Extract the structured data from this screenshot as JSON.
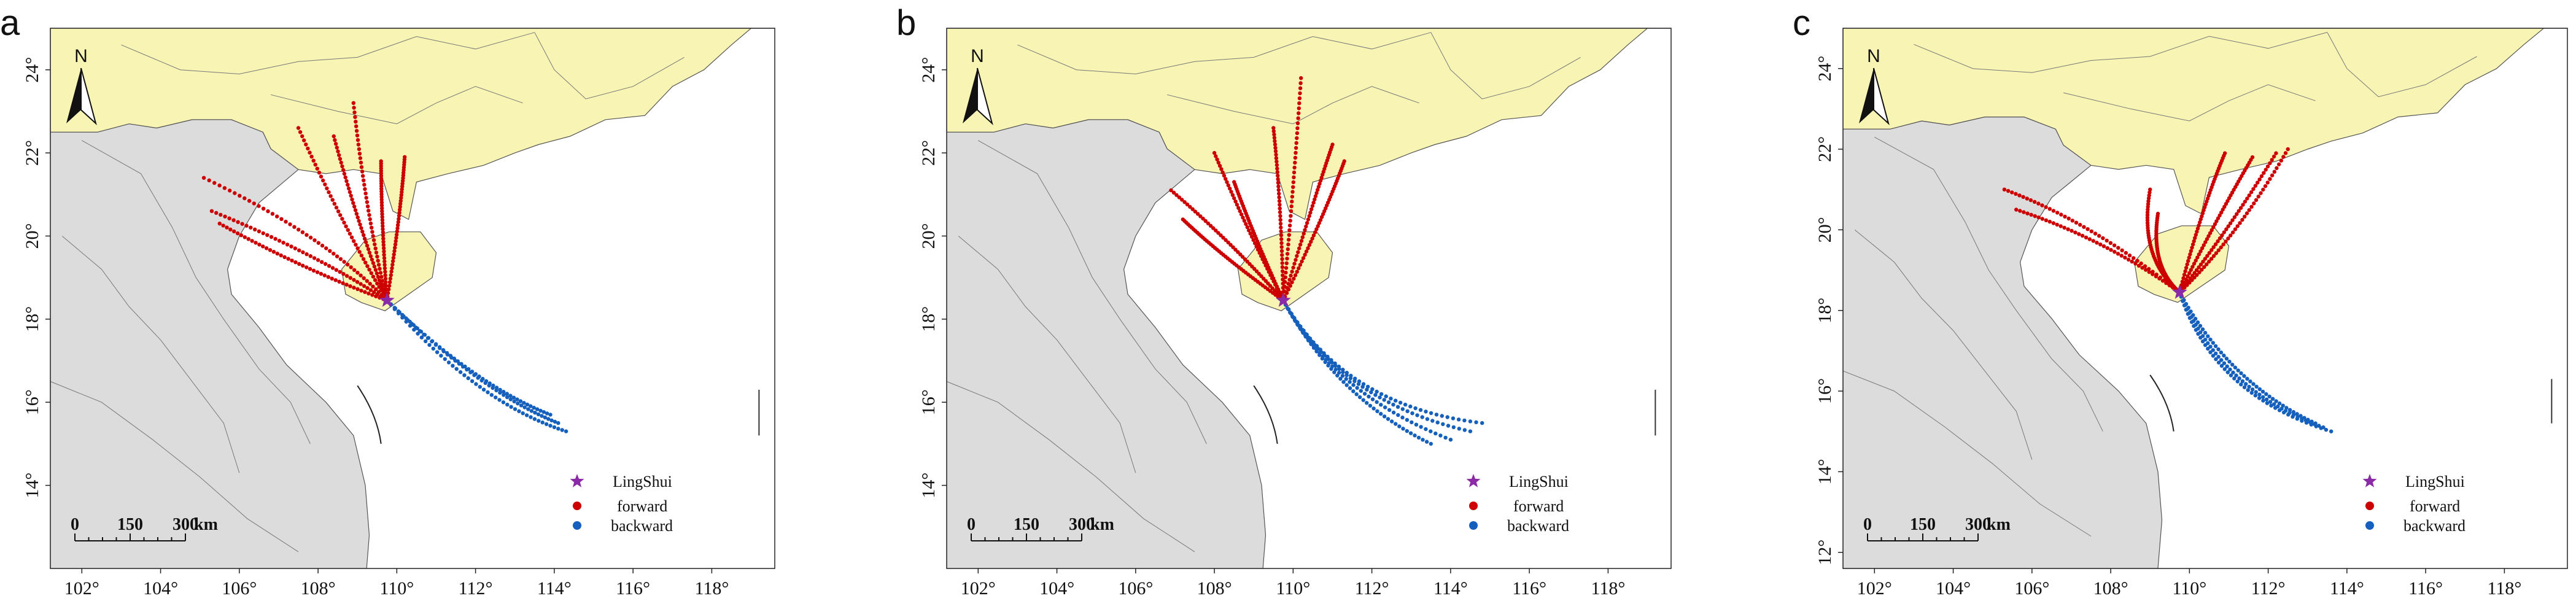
{
  "colors": {
    "china_land": "#f8f4b4",
    "other_land": "#dcdcdc",
    "sea": "#ffffff",
    "forward": "#cc0000",
    "backward": "#1560bd",
    "site": "#8b2aa6",
    "border": "#555555"
  },
  "legend": {
    "site_label": "LingShui",
    "forward_label": "forward",
    "backward_label": "backward"
  },
  "north_arrow": {
    "label": "N"
  },
  "scale_bar": {
    "labels": [
      "0",
      "150",
      "300"
    ],
    "unit": "km"
  },
  "site": {
    "lon": 109.75,
    "lat": 18.45
  },
  "panels": [
    {
      "letter": "a",
      "lon_range": [
        101.2,
        119.6
      ],
      "lat_range": [
        12.0,
        25.0
      ],
      "lon_ticks": [
        "102°",
        "104°",
        "106°",
        "108°",
        "110°",
        "112°",
        "114°",
        "116°",
        "118°"
      ],
      "lat_ticks": [
        "14°",
        "16°",
        "18°",
        "20°",
        "22°",
        "24°"
      ],
      "forward": [
        {
          "ctrl": [
            108.2,
            20.0
          ],
          "end": [
            105.1,
            21.4
          ]
        },
        {
          "ctrl": [
            107.9,
            19.6
          ],
          "end": [
            105.3,
            20.6
          ]
        },
        {
          "ctrl": [
            107.6,
            19.2
          ],
          "end": [
            105.5,
            20.3
          ]
        },
        {
          "ctrl": [
            108.6,
            20.3
          ],
          "end": [
            107.5,
            22.6
          ]
        },
        {
          "ctrl": [
            109.0,
            20.3
          ],
          "end": [
            108.4,
            22.4
          ]
        },
        {
          "ctrl": [
            109.2,
            20.6
          ],
          "end": [
            108.9,
            23.2
          ]
        },
        {
          "ctrl": [
            109.6,
            20.5
          ],
          "end": [
            109.6,
            21.8
          ]
        },
        {
          "ctrl": [
            110.1,
            20.5
          ],
          "end": [
            110.2,
            21.9
          ]
        }
      ],
      "backward": [
        {
          "ctrl": [
            112.0,
            16.0
          ],
          "end": [
            114.3,
            15.3
          ]
        },
        {
          "ctrl": [
            112.2,
            16.2
          ],
          "end": [
            114.1,
            15.5
          ]
        },
        {
          "ctrl": [
            112.0,
            16.4
          ],
          "end": [
            113.9,
            15.7
          ]
        }
      ]
    },
    {
      "letter": "b",
      "lon_range": [
        101.2,
        119.6
      ],
      "lat_range": [
        12.0,
        25.0
      ],
      "lon_ticks": [
        "102°",
        "104°",
        "106°",
        "108°",
        "110°",
        "112°",
        "114°",
        "116°",
        "118°"
      ],
      "lat_ticks": [
        "14°",
        "16°",
        "18°",
        "20°",
        "22°",
        "24°"
      ],
      "forward": [
        {
          "ctrl": [
            108.5,
            19.8
          ],
          "end": [
            106.9,
            21.1
          ]
        },
        {
          "ctrl": [
            108.2,
            19.5
          ],
          "end": [
            107.2,
            20.4
          ]
        },
        {
          "ctrl": [
            108.8,
            20.2
          ],
          "end": [
            108.0,
            22.0
          ]
        },
        {
          "ctrl": [
            109.0,
            20.0
          ],
          "end": [
            108.5,
            21.3
          ]
        },
        {
          "ctrl": [
            109.7,
            20.8
          ],
          "end": [
            109.5,
            22.6
          ]
        },
        {
          "ctrl": [
            110.0,
            21.0
          ],
          "end": [
            110.2,
            23.8
          ]
        },
        {
          "ctrl": [
            110.5,
            20.8
          ],
          "end": [
            111.0,
            22.2
          ]
        },
        {
          "ctrl": [
            110.8,
            20.5
          ],
          "end": [
            111.3,
            21.8
          ]
        }
      ],
      "backward": [
        {
          "ctrl": [
            111.3,
            15.9
          ],
          "end": [
            114.8,
            15.5
          ]
        },
        {
          "ctrl": [
            111.2,
            16.0
          ],
          "end": [
            114.5,
            15.3
          ]
        },
        {
          "ctrl": [
            111.0,
            16.2
          ],
          "end": [
            114.0,
            15.1
          ]
        },
        {
          "ctrl": [
            111.1,
            16.1
          ],
          "end": [
            113.5,
            15.0
          ]
        }
      ]
    },
    {
      "letter": "c",
      "lon_range": [
        101.2,
        119.6
      ],
      "lat_range": [
        11.6,
        25.0
      ],
      "lon_ticks": [
        "102°",
        "104°",
        "106°",
        "108°",
        "110°",
        "112°",
        "114°",
        "116°",
        "118°"
      ],
      "lat_ticks": [
        "12°",
        "14°",
        "16°",
        "18°",
        "20°",
        "22°",
        "24°"
      ],
      "forward": [
        {
          "ctrl": [
            107.5,
            20.2
          ],
          "end": [
            105.3,
            21.0
          ]
        },
        {
          "ctrl": [
            107.8,
            19.8
          ],
          "end": [
            105.6,
            20.5
          ]
        },
        {
          "ctrl": [
            108.7,
            19.3
          ],
          "end": [
            109.0,
            21.0
          ]
        },
        {
          "ctrl": [
            109.0,
            19.1
          ],
          "end": [
            109.2,
            20.4
          ]
        },
        {
          "ctrl": [
            110.3,
            20.5
          ],
          "end": [
            110.9,
            21.9
          ]
        },
        {
          "ctrl": [
            110.7,
            20.3
          ],
          "end": [
            111.6,
            21.8
          ]
        },
        {
          "ctrl": [
            111.0,
            20.0
          ],
          "end": [
            112.2,
            21.9
          ]
        },
        {
          "ctrl": [
            111.2,
            19.8
          ],
          "end": [
            112.5,
            22.0
          ]
        }
      ],
      "backward": [
        {
          "ctrl": [
            110.6,
            15.9
          ],
          "end": [
            113.6,
            15.0
          ]
        },
        {
          "ctrl": [
            110.8,
            16.0
          ],
          "end": [
            113.4,
            15.1
          ]
        },
        {
          "ctrl": [
            111.0,
            16.2
          ],
          "end": [
            113.2,
            15.2
          ]
        }
      ]
    }
  ]
}
